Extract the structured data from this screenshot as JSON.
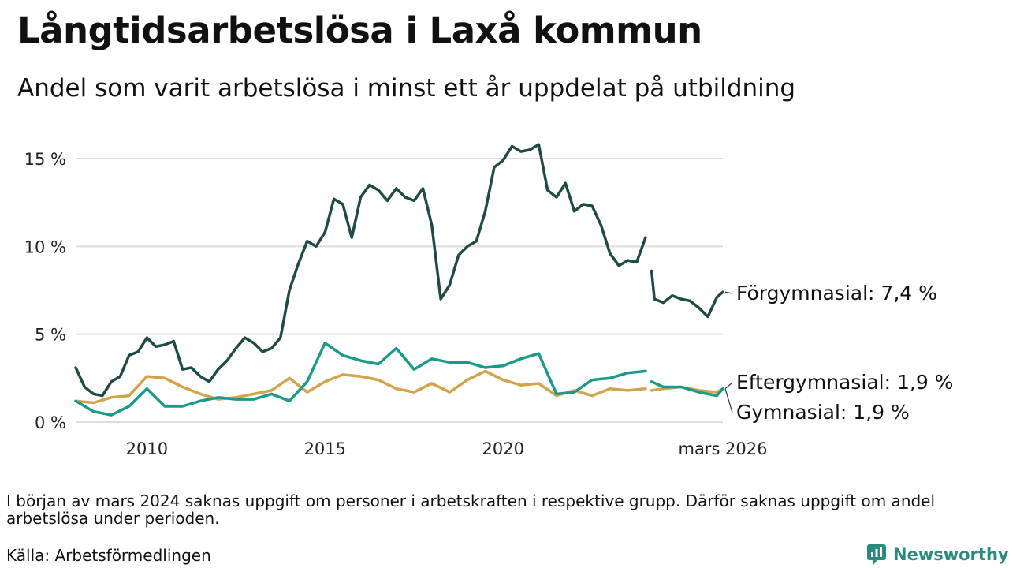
{
  "header": {
    "title": "Långtidsarbetslösa i Laxå kommun",
    "subtitle": "Andel som varit arbetslösa i minst ett år uppdelat på utbildning"
  },
  "footer": {
    "note": "I början av mars 2024 saknas uppgift om personer i arbetskraften i respektive grupp. Därför saknas uppgift om andel arbetslösa under perioden.",
    "source": "Källa: Arbetsförmedlingen",
    "brand": "Newsworthy"
  },
  "colors": {
    "forgymnasial": "#1f4b46",
    "gymnasial": "#1a9a88",
    "eftergymnasial": "#d4a24a",
    "grid": "#dddddd",
    "brand": "#2b8a7e"
  },
  "chart_data": {
    "type": "line",
    "title": "Långtidsarbetslösa i Laxå kommun",
    "subtitle": "Andel som varit arbetslösa i minst ett år uppdelat på utbildning",
    "xlabel": "",
    "ylabel": "",
    "xlim": [
      2008.0,
      2026.17
    ],
    "ylim": [
      0,
      16.5
    ],
    "grid": true,
    "legend": "direct-labels-right",
    "x_ticks": [
      {
        "value": 2010,
        "label": "2010"
      },
      {
        "value": 2015,
        "label": "2015"
      },
      {
        "value": 2020,
        "label": "2020"
      },
      {
        "value": 2026.17,
        "label": "mars 2026"
      }
    ],
    "y_ticks": [
      {
        "value": 0,
        "label": "0 %"
      },
      {
        "value": 5,
        "label": "5 %"
      },
      {
        "value": 10,
        "label": "10 %"
      },
      {
        "value": 15,
        "label": "15 %"
      }
    ],
    "gap": [
      2024.0,
      2024.17
    ],
    "series": [
      {
        "name": "Förgymnasial",
        "label": "Förgymnasial: 7,4 %",
        "color": "#1f4b46",
        "x": [
          2008.0,
          2008.25,
          2008.5,
          2008.75,
          2009.0,
          2009.25,
          2009.5,
          2009.75,
          2010.0,
          2010.25,
          2010.5,
          2010.75,
          2011.0,
          2011.25,
          2011.5,
          2011.75,
          2012.0,
          2012.25,
          2012.5,
          2012.75,
          2013.0,
          2013.25,
          2013.5,
          2013.75,
          2014.0,
          2014.25,
          2014.5,
          2014.75,
          2015.0,
          2015.25,
          2015.5,
          2015.75,
          2016.0,
          2016.25,
          2016.5,
          2016.75,
          2017.0,
          2017.25,
          2017.5,
          2017.75,
          2018.0,
          2018.25,
          2018.5,
          2018.75,
          2019.0,
          2019.25,
          2019.5,
          2019.75,
          2020.0,
          2020.25,
          2020.5,
          2020.75,
          2021.0,
          2021.25,
          2021.5,
          2021.75,
          2022.0,
          2022.25,
          2022.5,
          2022.75,
          2023.0,
          2023.25,
          2023.5,
          2023.75,
          2024.0,
          2024.17,
          2024.25,
          2024.5,
          2024.75,
          2025.0,
          2025.25,
          2025.5,
          2025.75,
          2026.0,
          2026.17
        ],
        "values": [
          3.1,
          2.0,
          1.6,
          1.5,
          2.3,
          2.6,
          3.8,
          4.0,
          4.8,
          4.3,
          4.4,
          4.6,
          3.0,
          3.1,
          2.6,
          2.3,
          3.0,
          3.5,
          4.2,
          4.8,
          4.5,
          4.0,
          4.2,
          4.8,
          7.5,
          9.0,
          10.3,
          10.0,
          10.8,
          12.7,
          12.4,
          10.5,
          12.8,
          13.5,
          13.2,
          12.6,
          13.3,
          12.8,
          12.6,
          13.3,
          11.2,
          7.0,
          7.8,
          9.5,
          10.0,
          10.3,
          12.0,
          14.5,
          14.9,
          15.7,
          15.4,
          15.5,
          15.8,
          13.2,
          12.8,
          13.6,
          12.0,
          12.4,
          12.3,
          11.2,
          9.6,
          8.9,
          9.2,
          9.1,
          10.5,
          8.6,
          7.0,
          6.8,
          7.2,
          7.0,
          6.9,
          6.5,
          6.0,
          7.1,
          7.4
        ]
      },
      {
        "name": "Eftergymnasial",
        "label": "Eftergymnasial: 1,9 %",
        "color": "#d4a24a",
        "x": [
          2008.0,
          2008.5,
          2009.0,
          2009.5,
          2010.0,
          2010.5,
          2011.0,
          2011.5,
          2012.0,
          2012.5,
          2013.0,
          2013.5,
          2014.0,
          2014.5,
          2015.0,
          2015.5,
          2016.0,
          2016.5,
          2017.0,
          2017.5,
          2018.0,
          2018.5,
          2019.0,
          2019.5,
          2020.0,
          2020.5,
          2021.0,
          2021.5,
          2022.0,
          2022.5,
          2023.0,
          2023.5,
          2024.0,
          2024.17,
          2024.5,
          2025.0,
          2025.5,
          2026.0,
          2026.17
        ],
        "values": [
          1.2,
          1.1,
          1.4,
          1.5,
          2.6,
          2.5,
          2.0,
          1.6,
          1.3,
          1.4,
          1.6,
          1.8,
          2.5,
          1.7,
          2.3,
          2.7,
          2.6,
          2.4,
          1.9,
          1.7,
          2.2,
          1.7,
          2.4,
          2.9,
          2.4,
          2.1,
          2.2,
          1.5,
          1.8,
          1.5,
          1.9,
          1.8,
          1.9,
          1.8,
          1.9,
          2.0,
          1.8,
          1.7,
          1.9
        ]
      },
      {
        "name": "Gymnasial",
        "label": "Gymnasial: 1,9 %",
        "color": "#1a9a88",
        "x": [
          2008.0,
          2008.5,
          2009.0,
          2009.5,
          2010.0,
          2010.5,
          2011.0,
          2011.5,
          2012.0,
          2012.5,
          2013.0,
          2013.5,
          2014.0,
          2014.5,
          2015.0,
          2015.5,
          2016.0,
          2016.5,
          2017.0,
          2017.5,
          2018.0,
          2018.5,
          2019.0,
          2019.5,
          2020.0,
          2020.5,
          2021.0,
          2021.5,
          2022.0,
          2022.5,
          2023.0,
          2023.5,
          2024.0,
          2024.17,
          2024.5,
          2025.0,
          2025.5,
          2026.0,
          2026.17
        ],
        "values": [
          1.2,
          0.6,
          0.4,
          0.9,
          1.9,
          0.9,
          0.9,
          1.2,
          1.4,
          1.3,
          1.3,
          1.6,
          1.2,
          2.3,
          4.5,
          3.8,
          3.5,
          3.3,
          4.2,
          3.0,
          3.6,
          3.4,
          3.4,
          3.1,
          3.2,
          3.6,
          3.9,
          1.6,
          1.7,
          2.4,
          2.5,
          2.8,
          2.9,
          2.3,
          2.0,
          2.0,
          1.7,
          1.5,
          1.9
        ]
      }
    ]
  }
}
